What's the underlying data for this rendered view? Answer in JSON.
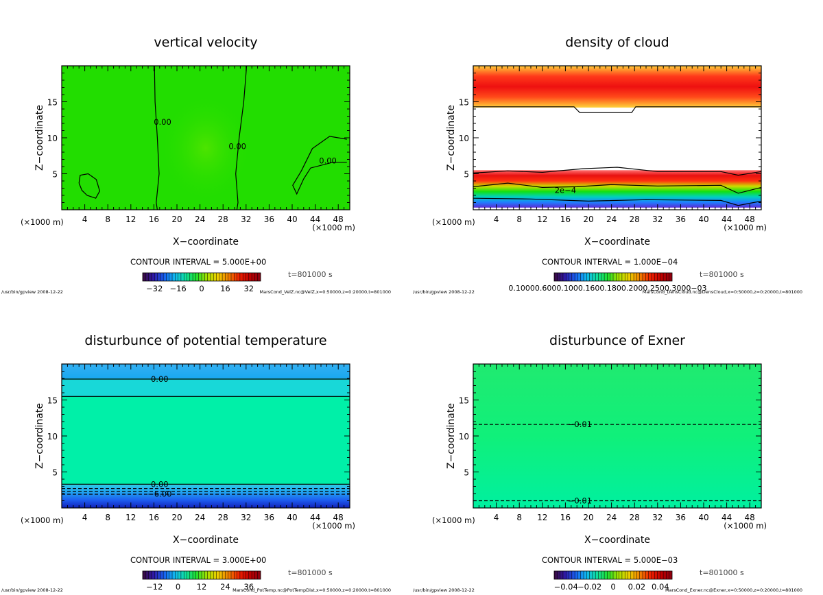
{
  "page": {
    "common": {
      "unit_left": "(×1000 m)",
      "unit_right": "(×1000 m)",
      "xlabel": "X−coordinate",
      "ylabel": "Z−coordinate",
      "x_ticks": [
        4,
        8,
        12,
        16,
        20,
        24,
        28,
        32,
        36,
        40,
        44,
        48
      ],
      "y_ticks": [
        5,
        10,
        15
      ],
      "xlim": [
        0,
        50
      ],
      "ylim": [
        0,
        20
      ]
    }
  },
  "chart_data": [
    {
      "id": "vertical-velocity",
      "type": "heatmap",
      "title": "vertical velocity",
      "contour_interval": "CONTOUR INTERVAL = 5.000E+00",
      "time": "t=801000 s",
      "colorbar_ticks": [
        "−32",
        "−16",
        "0",
        "16",
        "32"
      ],
      "colorbar_range": [
        -40,
        40
      ],
      "footer_left": "/usr/bin/gpview  2008-12-22",
      "footer_right": "MarsCond_VelZ.nc@VelZ,x=0:50000,z=0:20000,t=801000",
      "fill": {
        "base": "#22dd00"
      },
      "contour_labels": [
        {
          "text": "0.00",
          "x": 17.5,
          "z": 12.2
        },
        {
          "text": "0.00",
          "x": 30.5,
          "z": 8.8
        },
        {
          "text": "0.00",
          "x": 46.2,
          "z": 6.8
        }
      ],
      "contours": [
        {
          "dashed": false,
          "points": [
            [
              16.1,
              20
            ],
            [
              16.2,
              15
            ],
            [
              16.6,
              10
            ],
            [
              16.9,
              5
            ],
            [
              16.4,
              1
            ],
            [
              16.6,
              0
            ]
          ]
        },
        {
          "dashed": false,
          "points": [
            [
              32.1,
              20
            ],
            [
              31.6,
              15
            ],
            [
              30.8,
              10
            ],
            [
              30.2,
              5
            ],
            [
              30.6,
              1
            ],
            [
              30.4,
              0
            ]
          ]
        },
        {
          "dashed": false,
          "points": [
            [
              49.5,
              9.8
            ],
            [
              46.5,
              10.2
            ],
            [
              43.5,
              8.5
            ],
            [
              41.6,
              5.4
            ],
            [
              40.1,
              3.4
            ],
            [
              40.8,
              2.2
            ],
            [
              42.0,
              4.3
            ],
            [
              43.2,
              5.8
            ],
            [
              47.1,
              6.6
            ],
            [
              49.5,
              6.6
            ]
          ]
        },
        {
          "dashed": false,
          "points": [
            [
              3.0,
              3.7
            ],
            [
              3.2,
              4.8
            ],
            [
              4.6,
              5.0
            ],
            [
              6.0,
              4.2
            ],
            [
              6.6,
              2.6
            ],
            [
              5.9,
              1.6
            ],
            [
              4.4,
              2.0
            ],
            [
              3.5,
              2.7
            ],
            [
              3.0,
              3.7
            ]
          ]
        }
      ]
    },
    {
      "id": "density-of-cloud",
      "type": "heatmap",
      "title": "density of cloud",
      "contour_interval": "CONTOUR INTERVAL = 1.000E−04",
      "time": "t=801000 s",
      "colorbar_ticks": [
        "0.10000.6000.1000.1600.1800.2000.2500.3000−03"
      ],
      "colorbar_range": [
        0,
        0.001
      ],
      "footer_left": "/usr/bin/gpview  2008-12-22",
      "footer_right": "MarsCond_DensCloud.nc@DensCloud,x=0:50000,z=0:20000,t=801000",
      "bands": [
        {
          "z": [
            14.2,
            20
          ],
          "colors": [
            "#ffd23a",
            "#ff4a1a",
            "#ee1010",
            "#ff3a1a",
            "#ffcc3a"
          ]
        },
        {
          "z": [
            0.3,
            5.5
          ],
          "colors": [
            "#5a2bd6",
            "#1f7fff",
            "#00d0c0",
            "#12e012",
            "#ccdd00",
            "#ff3010",
            "#e81010",
            "#ff7070"
          ]
        }
      ],
      "contour_labels": [
        {
          "text": "2e−4",
          "x": 16.0,
          "z": 2.7
        }
      ],
      "contours": [
        {
          "dashed": false,
          "points": [
            [
              0,
              14.3
            ],
            [
              17.5,
              14.3
            ],
            [
              18.5,
              13.5
            ],
            [
              27.5,
              13.5
            ],
            [
              28.2,
              14.3
            ],
            [
              50,
              14.3
            ]
          ]
        },
        {
          "dashed": false,
          "points": [
            [
              0,
              5.1
            ],
            [
              6,
              5.4
            ],
            [
              12,
              5.2
            ],
            [
              19,
              5.7
            ],
            [
              25,
              5.9
            ],
            [
              32,
              5.3
            ],
            [
              43,
              5.3
            ],
            [
              46,
              4.8
            ],
            [
              50,
              5.3
            ]
          ]
        },
        {
          "dashed": false,
          "points": [
            [
              0,
              3.2
            ],
            [
              6,
              3.7
            ],
            [
              12,
              3.1
            ],
            [
              18,
              3.2
            ],
            [
              24,
              3.5
            ],
            [
              32,
              3.3
            ],
            [
              43,
              3.4
            ],
            [
              46,
              2.3
            ],
            [
              50,
              3.1
            ]
          ]
        },
        {
          "dashed": false,
          "points": [
            [
              0,
              1.6
            ],
            [
              10,
              1.5
            ],
            [
              20,
              1.2
            ],
            [
              30,
              1.4
            ],
            [
              43,
              1.3
            ],
            [
              46,
              0.6
            ],
            [
              50,
              1.2
            ]
          ]
        }
      ]
    },
    {
      "id": "potential-temperature",
      "type": "heatmap",
      "title": "disturbunce of potential temperature",
      "contour_interval": "CONTOUR INTERVAL = 3.000E+00",
      "time": "t=801000 s",
      "colorbar_ticks": [
        "−12",
        "0",
        "12",
        "24",
        "36"
      ],
      "colorbar_range": [
        -18,
        42
      ],
      "footer_left": "/usr/bin/gpview  2008-12-22",
      "footer_right": "MarsCond_PotTemp.nc@PotTempDist,x=0:50000,z=0:20000,t=801000",
      "bands": [
        {
          "z": [
            18.0,
            20
          ],
          "colors": [
            "#1aa8f0",
            "#33b0f2"
          ]
        },
        {
          "z": [
            15.5,
            18.0
          ],
          "colors": [
            "#18d8d8"
          ]
        },
        {
          "z": [
            3.2,
            15.5
          ],
          "colors": [
            "#00f0a8"
          ]
        },
        {
          "z": [
            0,
            3.2
          ],
          "colors": [
            "#1020b8",
            "#1e5cf0",
            "#20a0f0",
            "#2ec8e8"
          ]
        }
      ],
      "contour_labels": [
        {
          "text": "0.00",
          "x": 17.0,
          "z": 17.9
        },
        {
          "text": "0.00",
          "x": 17.0,
          "z": 3.3
        },
        {
          "text": "−6.00",
          "x": 17.0,
          "z": 1.95
        }
      ],
      "contours": [
        {
          "dashed": false,
          "points": [
            [
              0,
              17.9
            ],
            [
              50,
              17.9
            ]
          ]
        },
        {
          "dashed": false,
          "points": [
            [
              0,
              15.5
            ],
            [
              50,
              15.5
            ]
          ]
        },
        {
          "dashed": false,
          "points": [
            [
              0,
              3.3
            ],
            [
              50,
              3.3
            ]
          ]
        },
        {
          "dashed": true,
          "points": [
            [
              0,
              2.7
            ],
            [
              50,
              2.7
            ]
          ]
        },
        {
          "dashed": true,
          "points": [
            [
              0,
              2.3
            ],
            [
              50,
              2.3
            ]
          ]
        },
        {
          "dashed": true,
          "points": [
            [
              0,
              1.9
            ],
            [
              50,
              1.9
            ]
          ]
        }
      ]
    },
    {
      "id": "exner",
      "type": "heatmap",
      "title": "disturbunce of Exner",
      "contour_interval": "CONTOUR INTERVAL = 5.000E−03",
      "time": "t=801000 s",
      "colorbar_ticks": [
        "−0.04",
        "−0.02",
        "0",
        "0.02",
        "0.04"
      ],
      "colorbar_range": [
        -0.05,
        0.05
      ],
      "footer_left": "/usr/bin/gpview  2008-12-22",
      "footer_right": "MarsCond_Exner.nc@Exner,x=0:50000,z=0:20000,t=801000",
      "bands": [
        {
          "z": [
            0,
            20
          ],
          "colors": [
            "#00f0a0",
            "#10f07a",
            "#20ea70"
          ]
        }
      ],
      "contour_labels": [
        {
          "text": "−0.01",
          "x": 18.5,
          "z": 11.6
        },
        {
          "text": "−0.01",
          "x": 18.5,
          "z": 1.0
        }
      ],
      "contours": [
        {
          "dashed": true,
          "points": [
            [
              0,
              11.6
            ],
            [
              50,
              11.6
            ]
          ]
        },
        {
          "dashed": true,
          "points": [
            [
              0,
              1.0
            ],
            [
              50,
              1.0
            ]
          ]
        }
      ]
    }
  ]
}
